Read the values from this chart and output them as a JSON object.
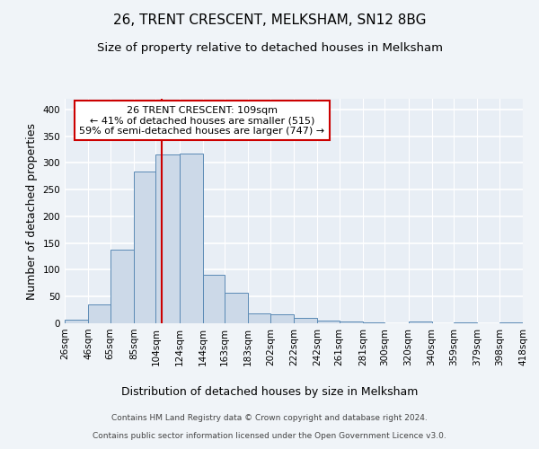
{
  "title1": "26, TRENT CRESCENT, MELKSHAM, SN12 8BG",
  "title2": "Size of property relative to detached houses in Melksham",
  "xlabel": "Distribution of detached houses by size in Melksham",
  "ylabel": "Number of detached properties",
  "annotation_line1": "26 TRENT CRESCENT: 109sqm",
  "annotation_line2": "← 41% of detached houses are smaller (515)",
  "annotation_line3": "59% of semi-detached houses are larger (747) →",
  "property_size": 109,
  "bar_color": "#ccd9e8",
  "bar_edge_color": "#5b8ab5",
  "vline_color": "#cc0000",
  "annotation_box_edge": "#cc0000",
  "footer1": "Contains HM Land Registry data © Crown copyright and database right 2024.",
  "footer2": "Contains public sector information licensed under the Open Government Licence v3.0.",
  "bin_edges": [
    26,
    46,
    65,
    85,
    104,
    124,
    144,
    163,
    183,
    202,
    222,
    242,
    261,
    281,
    300,
    320,
    340,
    359,
    379,
    398,
    418
  ],
  "bin_labels": [
    "26sqm",
    "46sqm",
    "65sqm",
    "85sqm",
    "104sqm",
    "124sqm",
    "144sqm",
    "163sqm",
    "183sqm",
    "202sqm",
    "222sqm",
    "242sqm",
    "261sqm",
    "281sqm",
    "300sqm",
    "320sqm",
    "340sqm",
    "359sqm",
    "379sqm",
    "398sqm",
    "418sqm"
  ],
  "bar_heights": [
    7,
    35,
    137,
    284,
    315,
    317,
    90,
    57,
    18,
    17,
    10,
    5,
    3,
    2,
    0,
    3,
    0,
    2,
    0,
    2
  ],
  "ylim": [
    0,
    420
  ],
  "yticks": [
    0,
    50,
    100,
    150,
    200,
    250,
    300,
    350,
    400
  ],
  "fig_bg_color": "#f0f4f8",
  "plot_bg_color": "#e8eef5",
  "grid_color": "#ffffff",
  "title_fontsize": 11,
  "subtitle_fontsize": 9.5,
  "axis_label_fontsize": 9,
  "tick_fontsize": 7.5,
  "annotation_fontsize": 8,
  "footer_fontsize": 6.5
}
